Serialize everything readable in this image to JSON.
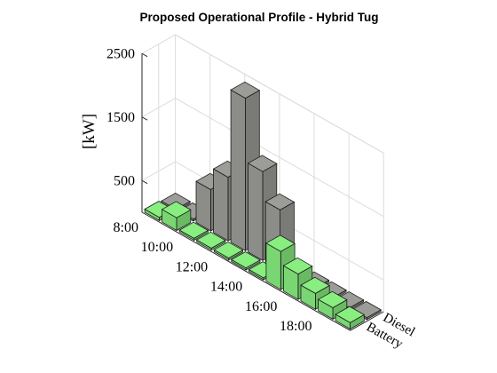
{
  "chart_data": {
    "type": "bar",
    "title": "Proposed Operational Profile - Hybrid Tug",
    "ylabel": "[kW]",
    "zlim": [
      0,
      2500
    ],
    "z_ticks": [
      500,
      1500,
      2500
    ],
    "time_labels": [
      "8:00",
      "10:00",
      "12:00",
      "14:00",
      "16:00",
      "18:00"
    ],
    "categories": [
      "8:00",
      "9:00",
      "10:00",
      "11:00",
      "12:00",
      "13:00",
      "14:00",
      "15:00",
      "16:00",
      "17:00",
      "18:00",
      "19:00"
    ],
    "series": [
      {
        "name": "Battery",
        "color": "#88ee80",
        "values": [
          50,
          200,
          30,
          30,
          30,
          30,
          30,
          600,
          400,
          250,
          180,
          100
        ]
      },
      {
        "name": "Diesel",
        "color": "#9c9c98",
        "values": [
          30,
          30,
          650,
          1000,
          2400,
          1400,
          950,
          30,
          30,
          30,
          30,
          30
        ]
      }
    ],
    "grid": true
  }
}
